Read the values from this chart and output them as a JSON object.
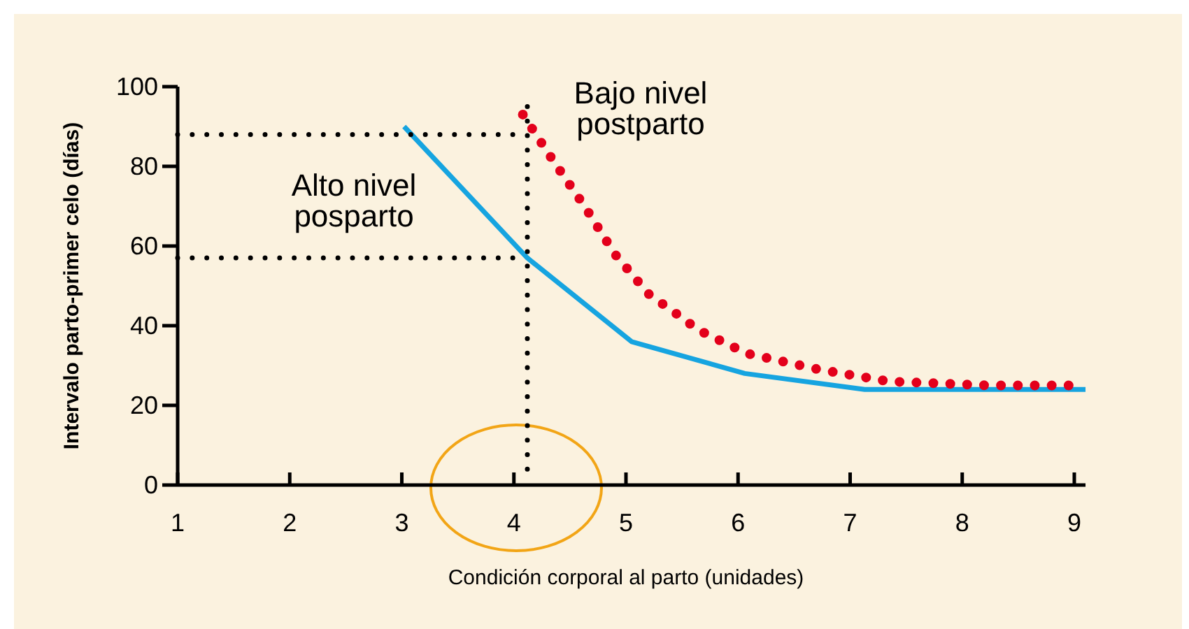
{
  "chart_data": {
    "type": "line",
    "xlabel": "Condición corporal al parto (unidades)",
    "ylabel": "Intervalo parto-primer celo (días)",
    "xlim": [
      1,
      9.1
    ],
    "ylim": [
      0,
      100
    ],
    "xticks": [
      1,
      2,
      3,
      4,
      5,
      6,
      7,
      8,
      9
    ],
    "yticks": [
      0,
      20,
      40,
      60,
      80,
      100
    ],
    "grid": false,
    "marker": "none",
    "series": [
      {
        "color": "#16a4e0",
        "line_style": "solid",
        "x": [
          3.02,
          4.12,
          5.05,
          6.06,
          7.13,
          9.1
        ],
        "values": [
          90,
          57,
          36,
          28,
          24,
          24
        ]
      },
      {
        "color": "#e3001b",
        "line_style": "dotted",
        "x": [
          4.08,
          4.36,
          4.63,
          4.9,
          5.2,
          5.5,
          5.64,
          6.08,
          6.72,
          7.35,
          8.24,
          9.1
        ],
        "values": [
          93,
          81,
          70,
          58,
          48,
          42,
          39,
          33,
          29,
          26,
          25,
          25
        ]
      },
      {
        "color": "#000000",
        "line_style": "dotted",
        "x": [
          1,
          4.12
        ],
        "values": [
          88,
          88
        ]
      },
      {
        "color": "#000000",
        "line_style": "dotted",
        "x": [
          1,
          4.12
        ],
        "values": [
          57,
          57
        ]
      },
      {
        "color": "#000000",
        "line_style": "dotted",
        "x": [
          4.12,
          4.12
        ],
        "values": [
          4,
          95
        ]
      }
    ],
    "annotations": [
      "Alto nivel\nposparto",
      "Bajo nivel\npostparto"
    ]
  }
}
